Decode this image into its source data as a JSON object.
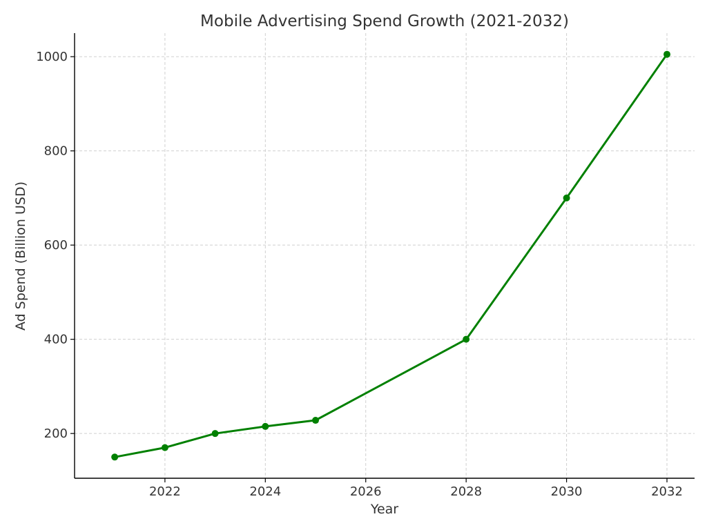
{
  "chart_data": {
    "type": "line",
    "title": "Mobile Advertising Spend Growth (2021-2032)",
    "xlabel": "Year",
    "ylabel": "Ad Spend (Billion USD)",
    "x_ticks": [
      2022,
      2024,
      2026,
      2028,
      2030,
      2032
    ],
    "y_ticks": [
      200,
      400,
      600,
      800,
      1000
    ],
    "xlim": [
      2020.2,
      2032.55
    ],
    "ylim": [
      105,
      1050
    ],
    "grid": true,
    "series": [
      {
        "x": [
          2021,
          2022,
          2023,
          2024,
          2025,
          2028,
          2030,
          2032
        ],
        "values": [
          150,
          170,
          200,
          215,
          228,
          400,
          700,
          1005
        ],
        "color": "#008000",
        "marker": "circle"
      }
    ]
  }
}
